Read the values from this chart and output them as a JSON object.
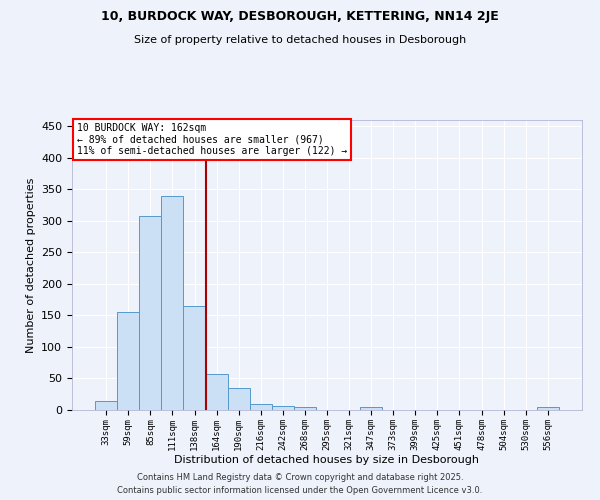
{
  "title1": "10, BURDOCK WAY, DESBOROUGH, KETTERING, NN14 2JE",
  "title2": "Size of property relative to detached houses in Desborough",
  "xlabel": "Distribution of detached houses by size in Desborough",
  "ylabel": "Number of detached properties",
  "categories": [
    "33sqm",
    "59sqm",
    "85sqm",
    "111sqm",
    "138sqm",
    "164sqm",
    "190sqm",
    "216sqm",
    "242sqm",
    "268sqm",
    "295sqm",
    "321sqm",
    "347sqm",
    "373sqm",
    "399sqm",
    "425sqm",
    "451sqm",
    "478sqm",
    "504sqm",
    "530sqm",
    "556sqm"
  ],
  "bar_heights": [
    15,
    155,
    308,
    340,
    165,
    57,
    35,
    10,
    6,
    4,
    0,
    0,
    4,
    0,
    0,
    0,
    0,
    0,
    0,
    0,
    4
  ],
  "bar_color": "#cce0f5",
  "bar_edgecolor": "#5599cc",
  "vline_color": "#aa0000",
  "annotation_line1": "10 BURDOCK WAY: 162sqm",
  "annotation_line2": "← 89% of detached houses are smaller (967)",
  "annotation_line3": "11% of semi-detached houses are larger (122) →",
  "annotation_box_color": "white",
  "annotation_box_edgecolor": "red",
  "ylim": [
    0,
    460
  ],
  "yticks": [
    0,
    50,
    100,
    150,
    200,
    250,
    300,
    350,
    400,
    450
  ],
  "background_color": "#eef2fb",
  "grid_color": "white",
  "footer1": "Contains HM Land Registry data © Crown copyright and database right 2025.",
  "footer2": "Contains public sector information licensed under the Open Government Licence v3.0."
}
